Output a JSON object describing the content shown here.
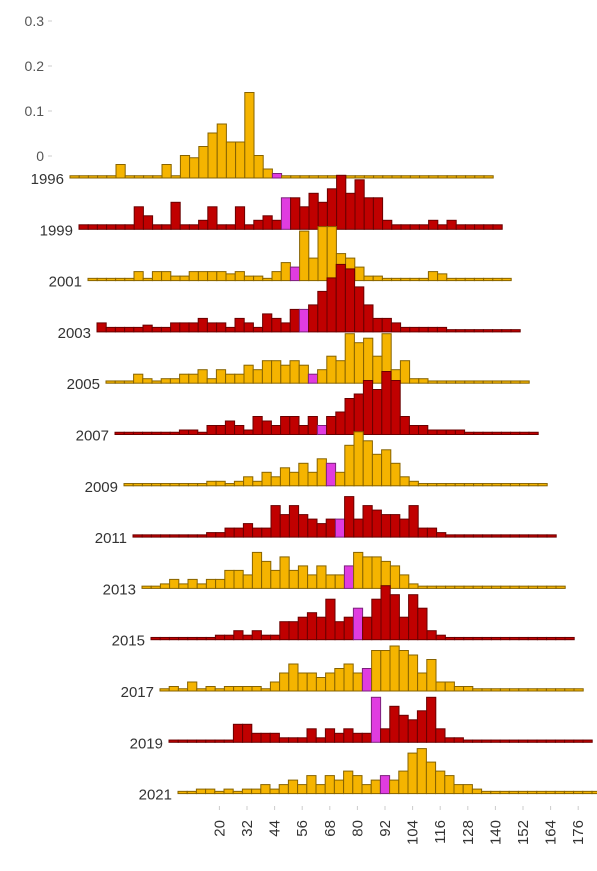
{
  "chart_data": {
    "type": "bar3d",
    "x": [
      4,
      8,
      12,
      16,
      20,
      24,
      28,
      32,
      36,
      40,
      44,
      48,
      52,
      56,
      60,
      64,
      68,
      72,
      76,
      80,
      84,
      88,
      92,
      96,
      100,
      104,
      108,
      112,
      116,
      120,
      124,
      128,
      132,
      136,
      140,
      144,
      148,
      152,
      156,
      160,
      164,
      168,
      172,
      176,
      180,
      184
    ],
    "xlim": [
      2,
      186
    ],
    "xticks": [
      20,
      32,
      44,
      56,
      68,
      80,
      92,
      104,
      116,
      128,
      140,
      152,
      164,
      176
    ],
    "zlim": [
      0,
      0.3
    ],
    "zticks": [
      0,
      0.1,
      0.2,
      0.3
    ],
    "highlight_x": 92,
    "highlight_color": "#e03ce0",
    "series": [
      {
        "name": "1996",
        "color": "#f5b400",
        "values": [
          0.005,
          0.005,
          0.005,
          0.005,
          0.005,
          0.03,
          0.005,
          0.005,
          0.005,
          0.005,
          0.03,
          0.005,
          0.05,
          0.045,
          0.07,
          0.1,
          0.12,
          0.08,
          0.08,
          0.19,
          0.05,
          0.02,
          0.01,
          0.005,
          0.005,
          0.005,
          0.005,
          0.005,
          0.005,
          0.005,
          0.005,
          0.005,
          0.005,
          0.005,
          0.005,
          0.005,
          0.005,
          0.005,
          0.005,
          0.005,
          0.005,
          0.005,
          0.005,
          0.005,
          0.005,
          0.005
        ]
      },
      {
        "name": "1999",
        "color": "#c00000",
        "values": [
          0.01,
          0.01,
          0.01,
          0.01,
          0.01,
          0.01,
          0.05,
          0.03,
          0.01,
          0.01,
          0.06,
          0.01,
          0.01,
          0.02,
          0.05,
          0.01,
          0.01,
          0.05,
          0.01,
          0.02,
          0.03,
          0.02,
          0.07,
          0.07,
          0.05,
          0.08,
          0.06,
          0.09,
          0.12,
          0.08,
          0.11,
          0.07,
          0.07,
          0.02,
          0.01,
          0.01,
          0.01,
          0.01,
          0.02,
          0.01,
          0.02,
          0.01,
          0.01,
          0.01,
          0.01,
          0.01
        ]
      },
      {
        "name": "2001",
        "color": "#f5b400",
        "values": [
          0.005,
          0.005,
          0.005,
          0.005,
          0.005,
          0.02,
          0.005,
          0.02,
          0.02,
          0.01,
          0.01,
          0.02,
          0.02,
          0.02,
          0.02,
          0.015,
          0.02,
          0.01,
          0.01,
          0.005,
          0.02,
          0.04,
          0.03,
          0.11,
          0.05,
          0.12,
          0.12,
          0.06,
          0.05,
          0.03,
          0.01,
          0.01,
          0.005,
          0.005,
          0.005,
          0.005,
          0.005,
          0.02,
          0.015,
          0.005,
          0.005,
          0.005,
          0.005,
          0.005,
          0.005,
          0.005
        ]
      },
      {
        "name": "2003",
        "color": "#c00000",
        "values": [
          0.02,
          0.01,
          0.01,
          0.01,
          0.01,
          0.015,
          0.01,
          0.01,
          0.02,
          0.02,
          0.02,
          0.03,
          0.02,
          0.02,
          0.01,
          0.03,
          0.02,
          0.01,
          0.04,
          0.03,
          0.02,
          0.05,
          0.05,
          0.06,
          0.09,
          0.12,
          0.15,
          0.14,
          0.1,
          0.06,
          0.03,
          0.03,
          0.02,
          0.01,
          0.01,
          0.01,
          0.01,
          0.01,
          0.005,
          0.005,
          0.005,
          0.005,
          0.005,
          0.005,
          0.005,
          0.005
        ]
      },
      {
        "name": "2005",
        "color": "#f5b400",
        "values": [
          0.005,
          0.005,
          0.005,
          0.02,
          0.01,
          0.005,
          0.01,
          0.01,
          0.02,
          0.02,
          0.03,
          0.01,
          0.03,
          0.02,
          0.02,
          0.04,
          0.03,
          0.05,
          0.05,
          0.04,
          0.05,
          0.04,
          0.02,
          0.03,
          0.06,
          0.05,
          0.11,
          0.09,
          0.1,
          0.06,
          0.11,
          0.03,
          0.05,
          0.01,
          0.01,
          0.005,
          0.005,
          0.005,
          0.005,
          0.005,
          0.005,
          0.005,
          0.005,
          0.005,
          0.005,
          0.005
        ]
      },
      {
        "name": "2007",
        "color": "#c00000",
        "values": [
          0.005,
          0.005,
          0.005,
          0.005,
          0.005,
          0.005,
          0.005,
          0.01,
          0.01,
          0.005,
          0.02,
          0.02,
          0.03,
          0.02,
          0.01,
          0.04,
          0.03,
          0.02,
          0.04,
          0.04,
          0.02,
          0.04,
          0.02,
          0.04,
          0.05,
          0.08,
          0.09,
          0.12,
          0.1,
          0.14,
          0.12,
          0.04,
          0.02,
          0.02,
          0.01,
          0.01,
          0.01,
          0.01,
          0.005,
          0.005,
          0.005,
          0.005,
          0.005,
          0.005,
          0.005,
          0.005
        ]
      },
      {
        "name": "2009",
        "color": "#f5b400",
        "values": [
          0.005,
          0.005,
          0.005,
          0.005,
          0.005,
          0.005,
          0.005,
          0.005,
          0.005,
          0.01,
          0.01,
          0.005,
          0.01,
          0.02,
          0.01,
          0.03,
          0.02,
          0.04,
          0.03,
          0.05,
          0.03,
          0.06,
          0.05,
          0.03,
          0.09,
          0.12,
          0.1,
          0.07,
          0.08,
          0.05,
          0.02,
          0.01,
          0.005,
          0.005,
          0.005,
          0.005,
          0.005,
          0.005,
          0.005,
          0.005,
          0.005,
          0.005,
          0.005,
          0.005,
          0.005,
          0.005
        ]
      },
      {
        "name": "2011",
        "color": "#c00000",
        "values": [
          0.005,
          0.005,
          0.005,
          0.005,
          0.005,
          0.005,
          0.005,
          0.005,
          0.01,
          0.01,
          0.02,
          0.02,
          0.03,
          0.02,
          0.02,
          0.07,
          0.05,
          0.07,
          0.05,
          0.04,
          0.03,
          0.04,
          0.04,
          0.09,
          0.04,
          0.07,
          0.06,
          0.05,
          0.05,
          0.04,
          0.07,
          0.02,
          0.02,
          0.01,
          0.005,
          0.005,
          0.005,
          0.005,
          0.005,
          0.005,
          0.005,
          0.005,
          0.005,
          0.005,
          0.005,
          0.005
        ]
      },
      {
        "name": "2013",
        "color": "#f5b400",
        "values": [
          0.005,
          0.005,
          0.01,
          0.02,
          0.01,
          0.02,
          0.01,
          0.02,
          0.02,
          0.04,
          0.04,
          0.03,
          0.08,
          0.06,
          0.04,
          0.07,
          0.04,
          0.05,
          0.03,
          0.05,
          0.03,
          0.03,
          0.05,
          0.08,
          0.07,
          0.07,
          0.06,
          0.05,
          0.03,
          0.01,
          0.005,
          0.005,
          0.005,
          0.005,
          0.005,
          0.005,
          0.005,
          0.005,
          0.005,
          0.005,
          0.005,
          0.005,
          0.005,
          0.005,
          0.005,
          0.005
        ]
      },
      {
        "name": "2015",
        "color": "#c00000",
        "values": [
          0.005,
          0.005,
          0.005,
          0.005,
          0.005,
          0.005,
          0.005,
          0.01,
          0.01,
          0.02,
          0.01,
          0.02,
          0.01,
          0.01,
          0.04,
          0.04,
          0.05,
          0.06,
          0.05,
          0.09,
          0.04,
          0.05,
          0.07,
          0.05,
          0.09,
          0.12,
          0.1,
          0.05,
          0.1,
          0.07,
          0.02,
          0.01,
          0.005,
          0.005,
          0.005,
          0.005,
          0.005,
          0.005,
          0.005,
          0.005,
          0.005,
          0.005,
          0.005,
          0.005,
          0.005,
          0.005
        ]
      },
      {
        "name": "2017",
        "color": "#f5b400",
        "values": [
          0.005,
          0.01,
          0.005,
          0.02,
          0.005,
          0.01,
          0.005,
          0.01,
          0.01,
          0.01,
          0.01,
          0.005,
          0.02,
          0.04,
          0.06,
          0.04,
          0.04,
          0.03,
          0.04,
          0.05,
          0.06,
          0.04,
          0.05,
          0.09,
          0.09,
          0.1,
          0.09,
          0.08,
          0.04,
          0.07,
          0.02,
          0.02,
          0.01,
          0.01,
          0.005,
          0.005,
          0.005,
          0.005,
          0.005,
          0.005,
          0.005,
          0.005,
          0.005,
          0.005,
          0.005,
          0.005
        ]
      },
      {
        "name": "2019",
        "color": "#c00000",
        "values": [
          0.005,
          0.005,
          0.005,
          0.005,
          0.005,
          0.005,
          0.005,
          0.04,
          0.04,
          0.02,
          0.02,
          0.02,
          0.01,
          0.01,
          0.01,
          0.03,
          0.01,
          0.03,
          0.02,
          0.03,
          0.02,
          0.02,
          0.1,
          0.03,
          0.08,
          0.06,
          0.05,
          0.07,
          0.1,
          0.03,
          0.01,
          0.01,
          0.005,
          0.005,
          0.005,
          0.005,
          0.005,
          0.005,
          0.005,
          0.005,
          0.005,
          0.005,
          0.005,
          0.005,
          0.005,
          0.005
        ]
      },
      {
        "name": "2021",
        "color": "#f5b400",
        "values": [
          0.005,
          0.005,
          0.01,
          0.01,
          0.005,
          0.01,
          0.005,
          0.01,
          0.01,
          0.02,
          0.01,
          0.02,
          0.03,
          0.02,
          0.04,
          0.02,
          0.04,
          0.03,
          0.05,
          0.04,
          0.02,
          0.03,
          0.04,
          0.03,
          0.05,
          0.09,
          0.1,
          0.07,
          0.05,
          0.04,
          0.02,
          0.02,
          0.01,
          0.005,
          0.005,
          0.005,
          0.005,
          0.005,
          0.005,
          0.005,
          0.005,
          0.005,
          0.005,
          0.005,
          0.005,
          0.005
        ]
      }
    ]
  }
}
